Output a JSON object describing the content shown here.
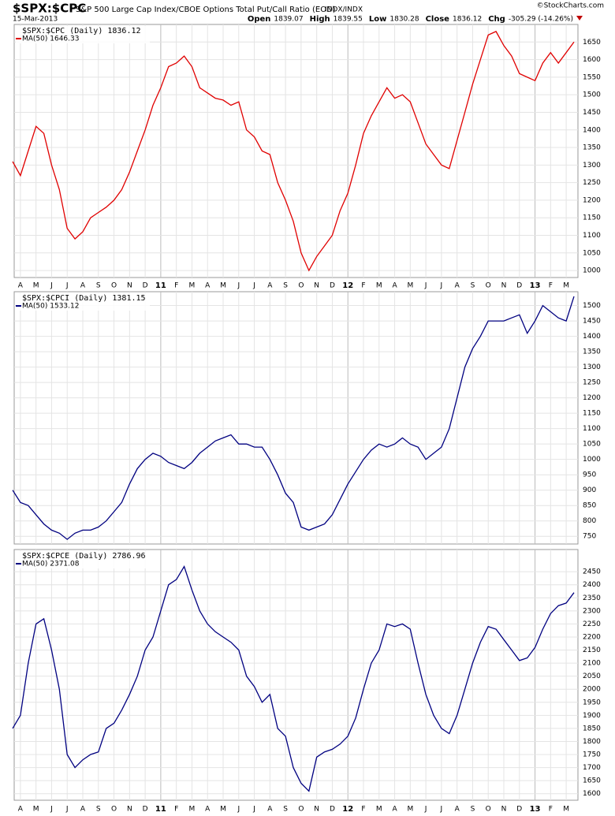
{
  "header": {
    "symbol": "$SPX:$CPC",
    "description": "S&P 500 Large Cap Index/CBOE Options Total Put/Call Ratio (EOD)",
    "exchange": "INDX/INDX",
    "date": "15-Mar-2013",
    "credit": "©StockCharts.com",
    "quote": [
      {
        "label": "Open",
        "value": "1839.07"
      },
      {
        "label": "High",
        "value": "1839.55"
      },
      {
        "label": "Low",
        "value": "1830.28"
      },
      {
        "label": "Close",
        "value": "1836.12"
      },
      {
        "label": "Chg",
        "value": "-305.29 (-14.26%)"
      }
    ]
  },
  "categories": [
    null,
    "A",
    null,
    "M",
    null,
    "J",
    null,
    "J",
    null,
    "A",
    null,
    "S",
    null,
    "O",
    null,
    "N",
    null,
    "D",
    null,
    "11",
    null,
    "F",
    null,
    "M",
    null,
    "A",
    null,
    "M",
    null,
    "J",
    null,
    "J",
    null,
    "A",
    null,
    "S",
    null,
    "O",
    null,
    "N",
    null,
    "D",
    null,
    "12",
    null,
    "F",
    null,
    "M",
    null,
    "A",
    null,
    "M",
    null,
    "J",
    null,
    "J",
    null,
    "A",
    null,
    "S",
    null,
    "O",
    null,
    "N",
    null,
    "D",
    null,
    "13",
    null,
    "F",
    null,
    "M",
    null
  ],
  "chart_data": [
    {
      "type": "line",
      "label": "$SPX:$CPC (Daily) 1836.12",
      "ylim": [
        980,
        1700
      ],
      "yticks": [
        1000,
        1050,
        1100,
        1150,
        1200,
        1250,
        1300,
        1350,
        1400,
        1450,
        1500,
        1550,
        1600,
        1650
      ],
      "grid": true,
      "series": [
        {
          "name": "MA(50) 1646.33",
          "color": "#e00000",
          "values": [
            1310,
            1270,
            1340,
            1410,
            1390,
            1300,
            1230,
            1120,
            1090,
            1110,
            1150,
            1165,
            1180,
            1200,
            1230,
            1280,
            1340,
            1400,
            1470,
            1520,
            1580,
            1590,
            1610,
            1580,
            1520,
            1505,
            1490,
            1485,
            1470,
            1480,
            1400,
            1380,
            1340,
            1330,
            1250,
            1200,
            1140,
            1050,
            1000,
            1040,
            1070,
            1100,
            1170,
            1220,
            1300,
            1390,
            1440,
            1480,
            1520,
            1490,
            1500,
            1480,
            1420,
            1360,
            1330,
            1300,
            1290,
            1370,
            1450,
            1530,
            1600,
            1670,
            1680,
            1640,
            1610,
            1560,
            1550,
            1540,
            1590,
            1620,
            1590,
            1620,
            1650
          ]
        }
      ]
    },
    {
      "type": "line",
      "label": "$SPX:$CPCI (Daily) 1381.15",
      "ylim": [
        725,
        1545
      ],
      "yticks": [
        750,
        800,
        850,
        900,
        950,
        1000,
        1050,
        1100,
        1150,
        1200,
        1250,
        1300,
        1350,
        1400,
        1450,
        1500
      ],
      "grid": true,
      "series": [
        {
          "name": "MA(50) 1533.12",
          "color": "#000080",
          "values": [
            900,
            860,
            850,
            820,
            790,
            770,
            760,
            740,
            760,
            770,
            770,
            780,
            800,
            830,
            860,
            920,
            970,
            1000,
            1020,
            1010,
            990,
            980,
            970,
            990,
            1020,
            1040,
            1060,
            1070,
            1080,
            1050,
            1050,
            1040,
            1040,
            1000,
            950,
            890,
            860,
            780,
            770,
            780,
            790,
            820,
            870,
            920,
            960,
            1000,
            1030,
            1050,
            1040,
            1050,
            1070,
            1050,
            1040,
            1000,
            1020,
            1040,
            1100,
            1200,
            1300,
            1360,
            1400,
            1450,
            1450,
            1450,
            1460,
            1470,
            1410,
            1450,
            1500,
            1480,
            1460,
            1450,
            1530
          ]
        }
      ]
    },
    {
      "type": "line",
      "label": "$SPX:$CPCE (Daily) 2786.96",
      "ylim": [
        1575,
        2535
      ],
      "yticks": [
        1600,
        1650,
        1700,
        1750,
        1800,
        1850,
        1900,
        1950,
        2000,
        2050,
        2100,
        2150,
        2200,
        2250,
        2300,
        2350,
        2400,
        2450
      ],
      "grid": true,
      "series": [
        {
          "name": "MA(50) 2371.08",
          "color": "#000080",
          "values": [
            1850,
            1900,
            2100,
            2250,
            2270,
            2150,
            2000,
            1750,
            1700,
            1730,
            1750,
            1760,
            1850,
            1870,
            1920,
            1980,
            2050,
            2150,
            2200,
            2300,
            2400,
            2420,
            2470,
            2380,
            2300,
            2250,
            2220,
            2200,
            2180,
            2150,
            2050,
            2010,
            1950,
            1980,
            1850,
            1820,
            1700,
            1640,
            1610,
            1740,
            1760,
            1770,
            1790,
            1820,
            1890,
            2000,
            2100,
            2150,
            2250,
            2240,
            2250,
            2230,
            2100,
            1980,
            1900,
            1850,
            1830,
            1900,
            2000,
            2100,
            2180,
            2240,
            2230,
            2190,
            2150,
            2110,
            2120,
            2160,
            2230,
            2290,
            2320,
            2330,
            2370
          ]
        }
      ]
    }
  ]
}
